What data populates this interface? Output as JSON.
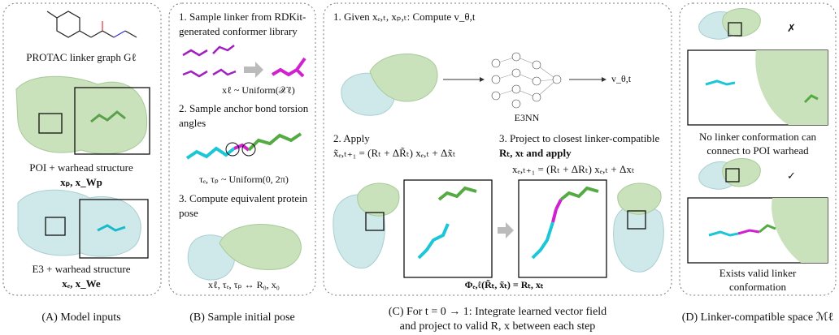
{
  "panel_a": {
    "linker_label": "PROTAC linker graph Gℓ",
    "poi_label": "POI + warhead structure",
    "poi_vars": "xₚ, x_Wp",
    "e3_label": "E3 + warhead structure",
    "e3_vars": "xₑ, x_We",
    "caption": "(A) Model inputs"
  },
  "panel_b": {
    "step1": [
      "1. Sample linker from RDKit-",
      "generated conformer library"
    ],
    "step1_eq": "xℓ ~ Uniform(𝒳ℓ)",
    "step2": [
      "2. Sample anchor bond torsion",
      "angles"
    ],
    "step2_eq": "τₑ, τₚ ~ Uniform(0, 2π)",
    "step3": [
      "3. Compute equivalent protein",
      "pose"
    ],
    "step3_eq": "xℓ, τₑ, τₚ ↔ R₀, x₀",
    "caption": "(B) Sample initial pose"
  },
  "panel_c": {
    "step1": "1. Given xₑ,ₜ, xₚ,ₜ: Compute v_θ,t",
    "network": "E3NN",
    "output": "v_θ,t",
    "step2": "2. Apply",
    "step2_eq": "x̃ₑ,ₜ₊₁ = (Rₜ + ΔR̃ₜ) xₑ,ₜ + Δx̃ₜ",
    "step3": [
      "3. Project to closest linker-compatible",
      "Rₜ, xₜ and apply"
    ],
    "step3_eq": "xₑ,ₜ₊₁ = (Rₜ + ΔRₜ) xₑ,ₜ + Δxₜ",
    "projection": "Φₑ,ℓ(R̃ₜ, x̃ₜ) = Rₜ, xₜ",
    "caption": [
      "(C) For t = 0 → 1: Integrate learned vector field",
      "and project to valid R, x between each step"
    ]
  },
  "panel_d": {
    "bad_mark": "✗",
    "bad_label": [
      "No linker conformation can",
      "connect to POI warhead"
    ],
    "good_mark": "✓",
    "good_label": [
      "Exists valid linker",
      "conformation"
    ],
    "caption": "(D) Linker-compatible space ℳℓ"
  }
}
